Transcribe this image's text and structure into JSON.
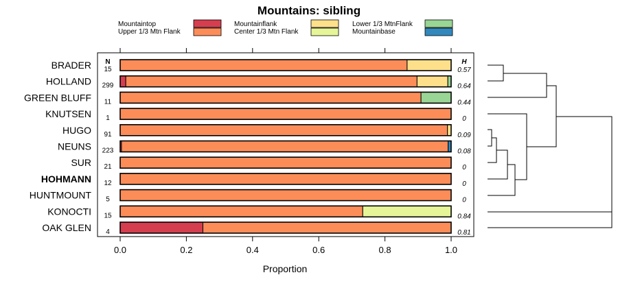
{
  "chart_data": {
    "type": "bar",
    "orientation": "horizontal",
    "stacked": true,
    "title": "Mountains: sibling",
    "xlabel": "Proportion",
    "ylabel": "",
    "xlim": [
      0,
      1
    ],
    "x_ticks": [
      0.0,
      0.2,
      0.4,
      0.6,
      0.8,
      1.0
    ],
    "x_tick_labels": [
      "0.0",
      "0.2",
      "0.4",
      "0.6",
      "0.8",
      "1.0"
    ],
    "n_header": "N",
    "h_header": "H",
    "legend": [
      {
        "name": "Mountaintop",
        "color": "#d53e4f"
      },
      {
        "name": "Mountainflank",
        "color": "#fee08b"
      },
      {
        "name": "Lower 1/3 MtnFlank",
        "color": "#99d594"
      },
      {
        "name": "Upper 1/3 Mtn Flank",
        "color": "#fc8d59"
      },
      {
        "name": "Center 1/3 Mtn Flank",
        "color": "#e6f598"
      },
      {
        "name": "Mountainbase",
        "color": "#3288bd"
      }
    ],
    "stack_order": [
      "Mountaintop",
      "Upper 1/3 Mtn Flank",
      "Mountainflank",
      "Center 1/3 Mtn Flank",
      "Lower 1/3 MtnFlank",
      "Mountainbase"
    ],
    "populations": [
      {
        "name": "BRADER",
        "n": "15",
        "h": "0.57",
        "bold": false,
        "segments": [
          0,
          0.867,
          0.133,
          0,
          0,
          0
        ]
      },
      {
        "name": "HOLLAND",
        "n": "299",
        "h": "0.64",
        "bold": false,
        "segments": [
          0.017,
          0.88,
          0.093,
          0,
          0.01,
          0
        ]
      },
      {
        "name": "GREEN BLUFF",
        "n": "11",
        "h": "0.44",
        "bold": false,
        "segments": [
          0,
          0.909,
          0,
          0,
          0.091,
          0
        ]
      },
      {
        "name": "KNUTSEN",
        "n": "1",
        "h": "0",
        "bold": false,
        "segments": [
          0,
          1.0,
          0,
          0,
          0,
          0
        ]
      },
      {
        "name": "HUGO",
        "n": "91",
        "h": "0.09",
        "bold": false,
        "segments": [
          0,
          0.989,
          0.011,
          0,
          0,
          0
        ]
      },
      {
        "name": "NEUNS",
        "n": "223",
        "h": "0.08",
        "bold": false,
        "segments": [
          0.004,
          0.987,
          0,
          0,
          0,
          0.009
        ]
      },
      {
        "name": "SUR",
        "n": "21",
        "h": "0",
        "bold": false,
        "segments": [
          0,
          1.0,
          0,
          0,
          0,
          0
        ]
      },
      {
        "name": "HOHMANN",
        "n": "12",
        "h": "0",
        "bold": true,
        "segments": [
          0,
          1.0,
          0,
          0,
          0,
          0
        ]
      },
      {
        "name": "HUNTMOUNT",
        "n": "5",
        "h": "0",
        "bold": false,
        "segments": [
          0,
          1.0,
          0,
          0,
          0,
          0
        ]
      },
      {
        "name": "KONOCTI",
        "n": "15",
        "h": "0.84",
        "bold": false,
        "segments": [
          0,
          0.733,
          0,
          0.267,
          0,
          0
        ]
      },
      {
        "name": "OAK GLEN",
        "n": "4",
        "h": "0.81",
        "bold": false,
        "segments": [
          0.25,
          0.75,
          0,
          0,
          0,
          0
        ]
      }
    ]
  }
}
